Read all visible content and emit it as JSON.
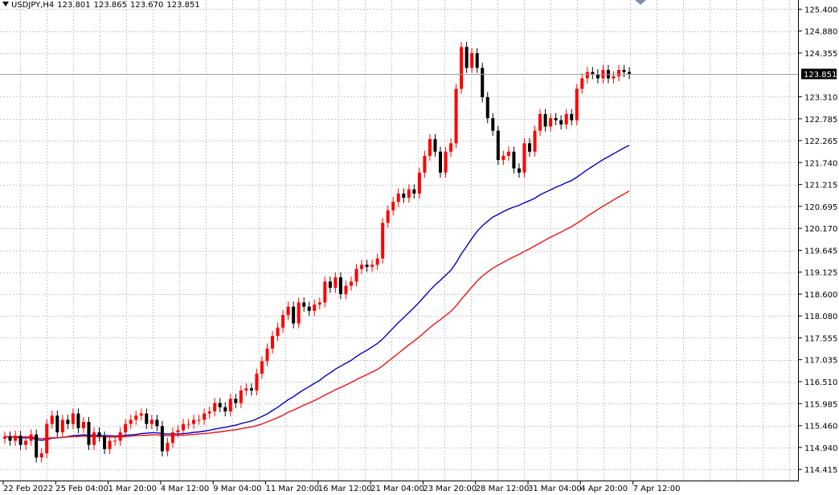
{
  "header": {
    "symbol": "USDJPY,H4",
    "open": "123.801",
    "high": "123.865",
    "low": "123.670",
    "close": "123.851"
  },
  "colors": {
    "bull_candle": "#ff0000",
    "bear_candle": "#000000",
    "ma_fast": "#0000cc",
    "ma_slow": "#ee1111",
    "grid": "#c8c8c8",
    "price_line": "#a0a0a0",
    "current_price_label_bg": "#000000",
    "current_price_label_fg": "#ffffff"
  },
  "chart_data": {
    "type": "candlestick",
    "title": "",
    "ylim": [
      114.15,
      125.62
    ],
    "y_ticks": [
      "125.400",
      "124.880",
      "124.355",
      "123.310",
      "122.785",
      "122.265",
      "121.740",
      "121.215",
      "120.695",
      "120.170",
      "119.645",
      "119.125",
      "118.600",
      "118.080",
      "117.555",
      "117.035",
      "116.510",
      "115.985",
      "115.460",
      "114.940",
      "114.415"
    ],
    "current_price": "123.851",
    "x_labels": [
      "22 Feb 2022",
      "25 Feb 04:00",
      "1 Mar 20:00",
      "4 Mar 12:00",
      "9 Mar 04:00",
      "11 Mar 20:00",
      "16 Mar 12:00",
      "21 Mar 04:00",
      "23 Mar 20:00",
      "28 Mar 12:00",
      "31 Mar 04:00",
      "4 Apr 20:00",
      "7 Apr 12:00"
    ],
    "x_label_bar_index": [
      0,
      10,
      20,
      30,
      40,
      50,
      60,
      70,
      80,
      90,
      100,
      110,
      120
    ],
    "grid": true,
    "series": [
      {
        "kind": "candles",
        "closes": [
          115.2,
          115.1,
          115.22,
          115.0,
          115.1,
          115.25,
          114.7,
          114.8,
          115.5,
          115.7,
          115.3,
          115.6,
          115.5,
          115.75,
          115.4,
          115.55,
          115.0,
          115.3,
          115.2,
          114.9,
          115.1,
          115.1,
          115.3,
          115.5,
          115.6,
          115.7,
          115.75,
          115.5,
          115.6,
          115.45,
          114.85,
          115.05,
          115.3,
          115.35,
          115.5,
          115.5,
          115.6,
          115.6,
          115.75,
          115.8,
          116.0,
          115.9,
          115.8,
          116.1,
          116.0,
          116.3,
          116.35,
          116.3,
          116.7,
          117.0,
          117.3,
          117.6,
          117.8,
          118.1,
          118.3,
          117.9,
          118.4,
          118.3,
          118.2,
          118.35,
          118.4,
          118.9,
          118.75,
          119.0,
          118.6,
          118.8,
          118.9,
          119.2,
          119.3,
          119.25,
          119.3,
          119.45,
          120.3,
          120.6,
          120.8,
          121.0,
          120.9,
          121.1,
          121.0,
          121.5,
          121.9,
          122.3,
          122.0,
          121.5,
          122.0,
          122.2,
          123.5,
          124.5,
          124.0,
          124.35,
          124.0,
          123.3,
          122.8,
          122.5,
          121.8,
          121.9,
          122.0,
          121.6,
          121.5,
          122.2,
          122.0,
          122.5,
          122.9,
          122.6,
          122.8,
          122.75,
          122.65,
          122.9,
          122.75,
          123.5,
          123.75,
          123.9,
          123.85,
          123.75,
          123.95,
          123.75,
          123.8,
          123.95,
          123.9,
          123.85
        ]
      },
      {
        "kind": "ma",
        "name": "",
        "values": [
          115.2,
          115.19,
          115.19,
          115.17,
          115.17,
          115.17,
          115.13,
          115.11,
          115.13,
          115.16,
          115.17,
          115.18,
          115.2,
          115.22,
          115.23,
          115.24,
          115.23,
          115.23,
          115.23,
          115.22,
          115.22,
          115.21,
          115.22,
          115.23,
          115.24,
          115.25,
          115.27,
          115.28,
          115.29,
          115.29,
          115.27,
          115.26,
          115.26,
          115.26,
          115.27,
          115.28,
          115.3,
          115.31,
          115.33,
          115.35,
          115.38,
          115.4,
          115.42,
          115.45,
          115.47,
          115.51,
          115.54,
          115.57,
          115.62,
          115.68,
          115.74,
          115.82,
          115.9,
          115.99,
          116.08,
          116.15,
          116.24,
          116.32,
          116.39,
          116.47,
          116.54,
          116.64,
          116.72,
          116.81,
          116.88,
          116.95,
          117.02,
          117.11,
          117.19,
          117.26,
          117.34,
          117.42,
          117.53,
          117.66,
          117.79,
          117.92,
          118.04,
          118.16,
          118.28,
          118.41,
          118.55,
          118.69,
          118.82,
          118.93,
          119.05,
          119.17,
          119.35,
          119.56,
          119.74,
          119.93,
          120.1,
          120.23,
          120.34,
          120.44,
          120.5,
          120.57,
          120.63,
          120.68,
          120.72,
          120.78,
          120.83,
          120.89,
          120.97,
          121.03,
          121.09,
          121.15,
          121.2,
          121.26,
          121.31,
          121.39,
          121.48,
          121.57,
          121.65,
          121.73,
          121.81,
          121.88,
          121.95,
          122.02,
          122.09,
          122.15
        ]
      },
      {
        "kind": "ma",
        "name": "",
        "values": [
          115.2,
          115.2,
          115.2,
          115.19,
          115.19,
          115.19,
          115.17,
          115.15,
          115.16,
          115.17,
          115.17,
          115.18,
          115.19,
          115.2,
          115.2,
          115.21,
          115.2,
          115.2,
          115.2,
          115.19,
          115.19,
          115.19,
          115.19,
          115.2,
          115.21,
          115.22,
          115.23,
          115.23,
          115.24,
          115.24,
          115.23,
          115.22,
          115.22,
          115.23,
          115.23,
          115.24,
          115.25,
          115.26,
          115.27,
          115.28,
          115.3,
          115.31,
          115.33,
          115.35,
          115.36,
          115.39,
          115.41,
          115.43,
          115.46,
          115.5,
          115.55,
          115.6,
          115.65,
          115.71,
          115.78,
          115.83,
          115.89,
          115.95,
          116.0,
          116.06,
          116.12,
          116.19,
          116.25,
          116.32,
          116.37,
          116.43,
          116.49,
          116.56,
          116.62,
          116.68,
          116.74,
          116.8,
          116.89,
          116.99,
          117.09,
          117.19,
          117.29,
          117.39,
          117.48,
          117.58,
          117.69,
          117.8,
          117.9,
          117.99,
          118.09,
          118.19,
          118.32,
          118.48,
          118.62,
          118.77,
          118.91,
          119.03,
          119.13,
          119.22,
          119.29,
          119.36,
          119.43,
          119.49,
          119.55,
          119.62,
          119.68,
          119.75,
          119.82,
          119.89,
          119.96,
          120.02,
          120.08,
          120.15,
          120.21,
          120.29,
          120.37,
          120.46,
          120.54,
          120.62,
          120.7,
          120.77,
          120.85,
          120.92,
          120.99,
          121.06
        ]
      }
    ]
  }
}
